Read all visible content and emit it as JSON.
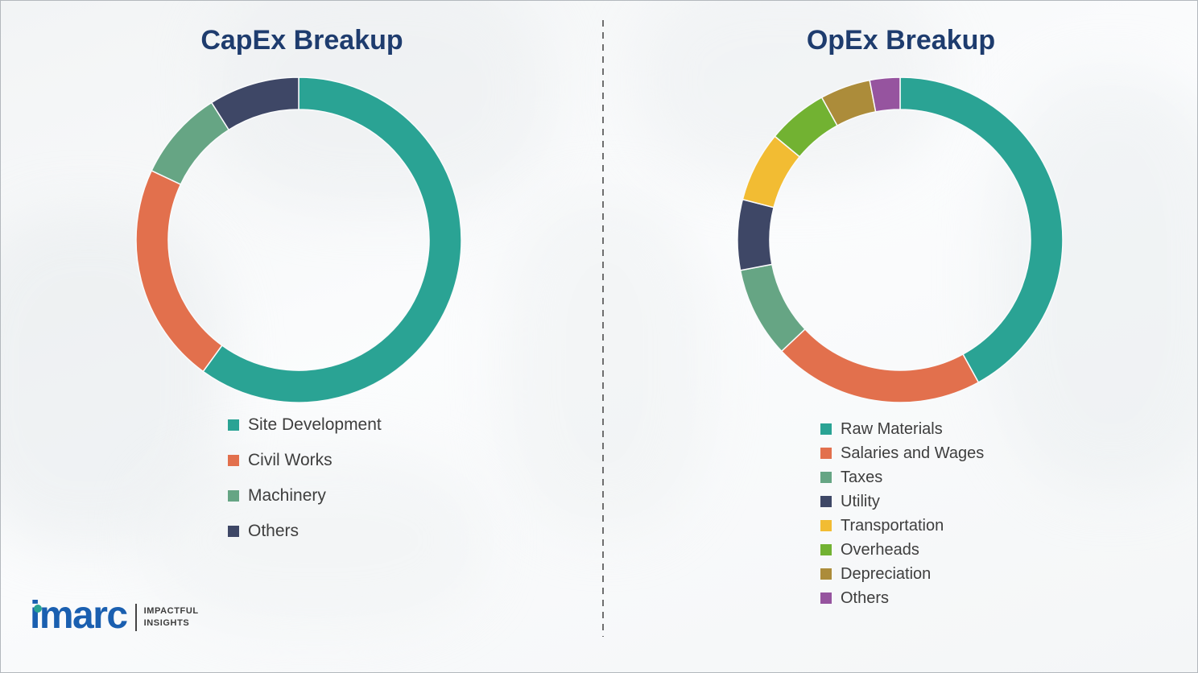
{
  "page": {
    "title_color": "#1e3c6e",
    "legend_text_color": "#3e3e3e",
    "divider_color": "#6e6e6e",
    "background_color": "#f7f9fa"
  },
  "chart_data": [
    {
      "type": "pie",
      "subtype": "donut",
      "title": "CapEx Breakup",
      "labels": [
        "Site Development",
        "Civil Works",
        "Machinery",
        "Others"
      ],
      "values": [
        60,
        22,
        9,
        9
      ],
      "colors": [
        "#2aa394",
        "#e2704d",
        "#66a584",
        "#3e4766"
      ],
      "value_unit": "percent_of_total_estimated",
      "start_angle": "top_clockwise",
      "legend_position": "below-left",
      "data_labels_shown": false
    },
    {
      "type": "pie",
      "subtype": "donut",
      "title": "OpEx Breakup",
      "labels": [
        "Raw Materials",
        "Salaries and Wages",
        "Taxes",
        "Utility",
        "Transportation",
        "Overheads",
        "Depreciation",
        "Others"
      ],
      "values": [
        42,
        21,
        9,
        7,
        7,
        6,
        5,
        3
      ],
      "colors": [
        "#2aa394",
        "#e2704d",
        "#66a584",
        "#3e4766",
        "#f2bc33",
        "#72b232",
        "#ac8c3a",
        "#96549f"
      ],
      "value_unit": "percent_of_total_estimated",
      "start_angle": "top_clockwise",
      "legend_position": "below-left",
      "data_labels_shown": false
    }
  ],
  "branding": {
    "logo_text": "imarc",
    "tagline_line1": "IMPACTFUL",
    "tagline_line2": "INSIGHTS",
    "logo_color": "#1a5fb0",
    "accent_color": "#2aa394"
  }
}
